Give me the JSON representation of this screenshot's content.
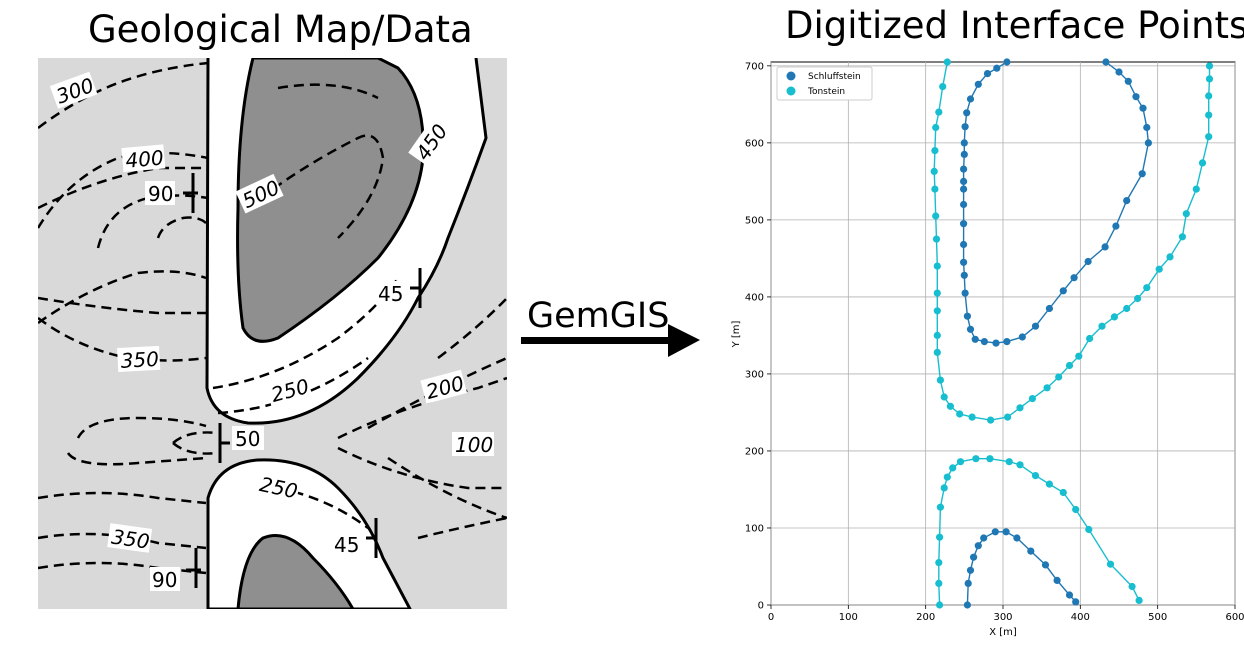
{
  "left_title": "Geological Map/Data",
  "right_title": "Digitized Interface Points",
  "arrow_label": "GemGIS",
  "map": {
    "contour_labels": [
      "300",
      "400",
      "500",
      "450",
      "350",
      "250",
      "200",
      "100",
      "250",
      "350"
    ],
    "dip_labels": [
      "90",
      "45",
      "50",
      "45",
      "90"
    ]
  },
  "chart_data": {
    "type": "scatter",
    "title": "",
    "xlabel": "X [m]",
    "ylabel": "Y [m]",
    "xlim": [
      0,
      600
    ],
    "ylim": [
      0,
      705
    ],
    "xticks": [
      0,
      100,
      200,
      300,
      400,
      500,
      600
    ],
    "yticks": [
      0,
      100,
      200,
      300,
      400,
      500,
      600,
      700
    ],
    "grid": true,
    "legend_position": "top-left",
    "series": [
      {
        "name": "Schluffstein",
        "color": "#1f77b4",
        "lines": [
          [
            [
              305,
              705
            ],
            [
              292,
              697
            ],
            [
              280,
              690
            ],
            [
              268,
              676
            ],
            [
              258,
              657
            ],
            [
              253,
              639
            ],
            [
              251,
              621
            ],
            [
              250,
              600
            ],
            [
              250,
              585
            ],
            [
              249,
              566
            ],
            [
              249,
              550
            ],
            [
              249,
              540
            ],
            [
              249,
              520
            ],
            [
              249,
              495
            ],
            [
              249,
              468
            ],
            [
              249,
              445
            ],
            [
              250,
              428
            ],
            [
              251,
              405
            ],
            [
              254,
              375
            ],
            [
              258,
              358
            ],
            [
              264,
              345
            ],
            [
              276,
              342
            ],
            [
              291,
              340
            ],
            [
              305,
              342
            ],
            [
              325,
              348
            ],
            [
              342,
              362
            ],
            [
              360,
              385
            ],
            [
              378,
              408
            ],
            [
              392,
              425
            ],
            [
              410,
              446
            ],
            [
              432,
              465
            ],
            [
              446,
              492
            ],
            [
              460,
              525
            ],
            [
              480,
              560
            ],
            [
              488,
              600
            ],
            [
              486,
              620
            ],
            [
              481,
              645
            ],
            [
              472,
              660
            ],
            [
              462,
              680
            ],
            [
              450,
              692
            ],
            [
              433,
              705
            ]
          ],
          [
            [
              254,
              0
            ],
            [
              255,
              28
            ],
            [
              258,
              45
            ],
            [
              262,
              62
            ],
            [
              268,
              77
            ],
            [
              275,
              87
            ],
            [
              290,
              95
            ],
            [
              304,
              95
            ],
            [
              318,
              87
            ],
            [
              336,
              70
            ],
            [
              355,
              52
            ],
            [
              370,
              32
            ],
            [
              386,
              13
            ],
            [
              394,
              4
            ]
          ]
        ]
      },
      {
        "name": "Tonstein",
        "color": "#17becf",
        "lines": [
          [
            [
              228,
              705
            ],
            [
              222,
              673
            ],
            [
              217,
              640
            ],
            [
              213,
              620
            ],
            [
              212,
              590
            ],
            [
              211,
              563
            ],
            [
              212,
              540
            ],
            [
              213,
              505
            ],
            [
              214,
              475
            ],
            [
              215,
              440
            ],
            [
              215,
              405
            ],
            [
              215,
              382
            ],
            [
              215,
              350
            ],
            [
              215,
              328
            ],
            [
              219,
              292
            ],
            [
              224,
              270
            ],
            [
              232,
              258
            ],
            [
              244,
              248
            ],
            [
              260,
              244
            ],
            [
              284,
              240
            ],
            [
              306,
              244
            ],
            [
              322,
              256
            ],
            [
              338,
              268
            ],
            [
              357,
              282
            ],
            [
              372,
              296
            ],
            [
              386,
              311
            ],
            [
              398,
              323
            ],
            [
              412,
              346
            ],
            [
              428,
              362
            ],
            [
              444,
              374
            ],
            [
              460,
              385
            ],
            [
              474,
              398
            ],
            [
              486,
              412
            ],
            [
              502,
              436
            ],
            [
              516,
              452
            ],
            [
              532,
              478
            ],
            [
              537,
              508
            ],
            [
              550,
              540
            ],
            [
              558,
              574
            ],
            [
              566,
              608
            ],
            [
              566,
              636
            ],
            [
              566,
              661
            ],
            [
              567,
              683
            ],
            [
              567,
              700
            ]
          ],
          [
            [
              218,
              0
            ],
            [
              217,
              28
            ],
            [
              217,
              55
            ],
            [
              218,
              88
            ],
            [
              219,
              127
            ],
            [
              224,
              152
            ],
            [
              228,
              166
            ],
            [
              235,
              178
            ],
            [
              245,
              186
            ],
            [
              265,
              190
            ],
            [
              283,
              190
            ],
            [
              308,
              186
            ],
            [
              322,
              182
            ],
            [
              342,
              168
            ],
            [
              360,
              157
            ],
            [
              378,
              146
            ],
            [
              394,
              124
            ],
            [
              411,
              98
            ],
            [
              439,
              53
            ],
            [
              467,
              24
            ],
            [
              476,
              6
            ]
          ]
        ]
      }
    ]
  }
}
